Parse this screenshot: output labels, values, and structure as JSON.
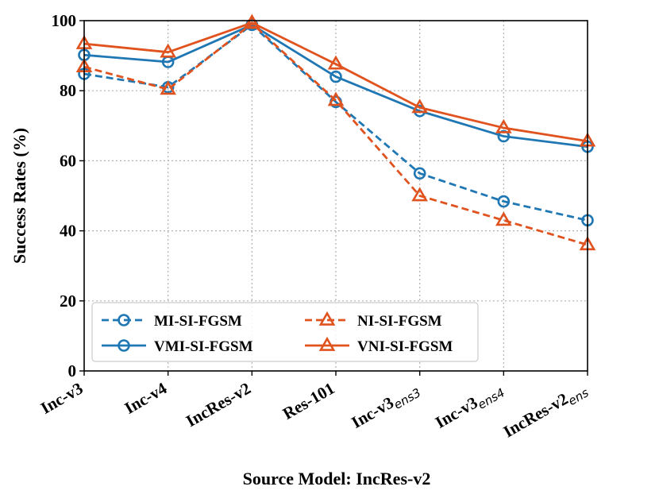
{
  "chart_data": {
    "type": "line",
    "title": "",
    "xlabel": "Source Model: IncRes-v2",
    "ylabel": "Success Rates (%)",
    "ylim": [
      0,
      100
    ],
    "yticks": [
      0,
      20,
      40,
      60,
      80,
      100
    ],
    "grid": true,
    "legend_position": "lower-left",
    "categories": [
      {
        "base": "Inc-v3",
        "sub": ""
      },
      {
        "base": "Inc-v4",
        "sub": ""
      },
      {
        "base": "IncRes-v2",
        "sub": ""
      },
      {
        "base": "Res-101",
        "sub": ""
      },
      {
        "base": "Inc-v3",
        "sub": "ens3"
      },
      {
        "base": "Inc-v3",
        "sub": "ens4"
      },
      {
        "base": "IncRes-v2",
        "sub": "ens"
      }
    ],
    "series": [
      {
        "name": "MI-SI-FGSM",
        "color": "#1f77b4",
        "dash": "dashed",
        "marker": "circle",
        "values": [
          84.8,
          81.0,
          98.8,
          76.8,
          56.4,
          48.4,
          43.0
        ]
      },
      {
        "name": "VMI-SI-FGSM",
        "color": "#1f77b4",
        "dash": "solid",
        "marker": "circle",
        "values": [
          90.2,
          88.2,
          98.8,
          84.0,
          74.2,
          67.0,
          64.0
        ]
      },
      {
        "name": "NI-SI-FGSM",
        "color": "#e0531f",
        "dash": "dashed",
        "marker": "triangle",
        "values": [
          86.8,
          80.4,
          99.2,
          77.2,
          50.0,
          43.0,
          36.0
        ]
      },
      {
        "name": "VNI-SI-FGSM",
        "color": "#e0531f",
        "dash": "solid",
        "marker": "triangle",
        "values": [
          93.4,
          91.0,
          99.4,
          87.6,
          75.2,
          69.4,
          65.6
        ]
      }
    ]
  }
}
